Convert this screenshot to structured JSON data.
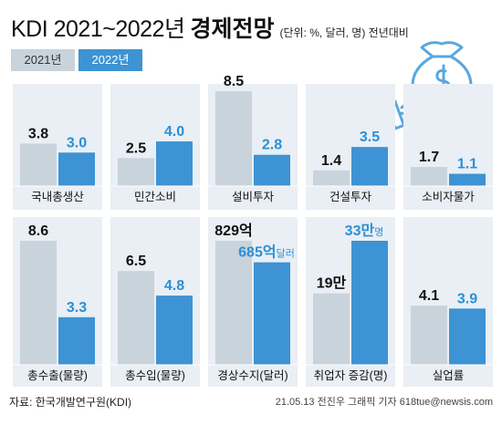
{
  "header": {
    "title_main": "KDI 2021~2022년",
    "title_bold": "경제전망",
    "unit_note": "(단위: %, 달러, 명) 전년대비"
  },
  "legend": {
    "items": [
      {
        "label": "2021년",
        "color": "#c9d3db"
      },
      {
        "label": "2022년",
        "color": "#3d93d3"
      }
    ]
  },
  "colors": {
    "bar_2021": "#c9d3db",
    "bar_2022": "#3d93d3",
    "label_2021": "#111111",
    "label_2022": "#2b8fd6",
    "panel_bg": "#e9eff4",
    "icon": "#5aa7de"
  },
  "illustration": {
    "icon": "money-bag-hand-icon"
  },
  "chart_data": [
    {
      "type": "bar",
      "category": "국내총생산",
      "series": [
        {
          "name": "2021년",
          "value": 3.8,
          "label": "3.8"
        },
        {
          "name": "2022년",
          "value": 3.0,
          "label": "3.0"
        }
      ]
    },
    {
      "type": "bar",
      "category": "민간소비",
      "series": [
        {
          "name": "2021년",
          "value": 2.5,
          "label": "2.5"
        },
        {
          "name": "2022년",
          "value": 4.0,
          "label": "4.0"
        }
      ]
    },
    {
      "type": "bar",
      "category": "설비투자",
      "series": [
        {
          "name": "2021년",
          "value": 8.5,
          "label": "8.5"
        },
        {
          "name": "2022년",
          "value": 2.8,
          "label": "2.8"
        }
      ]
    },
    {
      "type": "bar",
      "category": "건설투자",
      "series": [
        {
          "name": "2021년",
          "value": 1.4,
          "label": "1.4"
        },
        {
          "name": "2022년",
          "value": 3.5,
          "label": "3.5"
        }
      ]
    },
    {
      "type": "bar",
      "category": "소비자물가",
      "series": [
        {
          "name": "2021년",
          "value": 1.7,
          "label": "1.7"
        },
        {
          "name": "2022년",
          "value": 1.1,
          "label": "1.1"
        }
      ]
    },
    {
      "type": "bar",
      "category": "총수출(물량)",
      "series": [
        {
          "name": "2021년",
          "value": 8.6,
          "label": "8.6"
        },
        {
          "name": "2022년",
          "value": 3.3,
          "label": "3.3"
        }
      ]
    },
    {
      "type": "bar",
      "category": "총수입(물량)",
      "series": [
        {
          "name": "2021년",
          "value": 6.5,
          "label": "6.5"
        },
        {
          "name": "2022년",
          "value": 4.8,
          "label": "4.8"
        }
      ]
    },
    {
      "type": "bar",
      "category": "경상수지(달러)",
      "series": [
        {
          "name": "2021년",
          "value": 829,
          "label": "829억"
        },
        {
          "name": "2022년",
          "value": 685,
          "label": "685억",
          "unit": "달러"
        }
      ]
    },
    {
      "type": "bar",
      "category": "취업자 증감(명)",
      "series": [
        {
          "name": "2021년",
          "value": 19,
          "label": "19만"
        },
        {
          "name": "2022년",
          "value": 33,
          "label": "33만",
          "unit": "명"
        }
      ]
    },
    {
      "type": "bar",
      "category": "실업률",
      "series": [
        {
          "name": "2021년",
          "value": 4.1,
          "label": "4.1"
        },
        {
          "name": "2022년",
          "value": 3.9,
          "label": "3.9"
        }
      ]
    }
  ],
  "footer": {
    "source": "자료: 한국개발연구원(KDI)",
    "credit": "21.05.13 전진우 그래픽 기자 618tue@newsis.com"
  }
}
